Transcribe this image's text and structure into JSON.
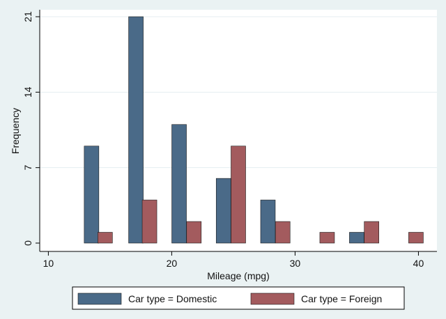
{
  "chart_data": {
    "type": "bar",
    "title": "",
    "xlabel": "Mileage (mpg)",
    "ylabel": "Frequency",
    "xlim": [
      10,
      40
    ],
    "ylim": [
      0,
      21
    ],
    "xticks": [
      10,
      20,
      30,
      40
    ],
    "yticks": [
      0,
      7,
      14,
      21
    ],
    "grid": true,
    "legend_position": "bottom",
    "series": [
      {
        "name": "Car type = Domestic",
        "color": "#4a6a88",
        "x": [
          13.5,
          17.1,
          20.6,
          24.2,
          27.8,
          35.0
        ],
        "values": [
          9,
          21,
          11,
          6,
          4,
          1
        ]
      },
      {
        "name": "Car type = Foreign",
        "color": "#a35b5e",
        "x": [
          14.6,
          18.2,
          21.8,
          25.4,
          29.0,
          32.6,
          36.2,
          39.8
        ],
        "values": [
          1,
          4,
          2,
          9,
          2,
          1,
          2,
          1
        ]
      }
    ]
  }
}
